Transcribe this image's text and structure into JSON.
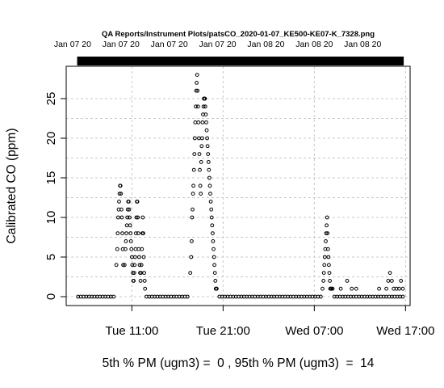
{
  "chart_data": {
    "type": "scatter",
    "title": "QA Reports/Instrument Plots/patsCO_2020-01-07_KE500-KE07-K_7328.png",
    "ylabel": "Calibrated CO (ppm)",
    "xlabel": "",
    "footer": "5th % PM (ugm3) =  0 , 95th % PM (ugm3)  =  14",
    "x_unit": "hours since Tue 00:00 (Jan 07 20)",
    "xlim": [
      3.8,
      41.5
    ],
    "ylim": [
      0,
      28
    ],
    "grid": true,
    "bottom_ticks": [
      {
        "x": 11,
        "label": "Tue 11:00"
      },
      {
        "x": 21,
        "label": "Tue 21:00"
      },
      {
        "x": 31,
        "label": "Wed 07:00"
      },
      {
        "x": 41,
        "label": "Wed 17:00"
      }
    ],
    "top_ticks": [
      {
        "x": 4.5,
        "label": "Jan 07 20"
      },
      {
        "x": 9.8,
        "label": "Jan 07 20"
      },
      {
        "x": 15.1,
        "label": "Jan 07 20"
      },
      {
        "x": 20.4,
        "label": "Jan 07 20"
      },
      {
        "x": 25.7,
        "label": "Jan 08 20"
      },
      {
        "x": 31.0,
        "label": "Jan 08 20"
      },
      {
        "x": 36.3,
        "label": "Jan 08 20"
      }
    ],
    "y_ticks": [
      0,
      5,
      10,
      15,
      20,
      25
    ],
    "top_bar": {
      "start": 5.0,
      "end": 40.8
    },
    "series": [
      {
        "name": "",
        "marker": "open-circle",
        "points": [
          [
            5.1,
            0
          ],
          [
            5.4,
            0
          ],
          [
            5.7,
            0
          ],
          [
            6.0,
            0
          ],
          [
            6.3,
            0
          ],
          [
            6.6,
            0
          ],
          [
            6.9,
            0
          ],
          [
            7.2,
            0
          ],
          [
            7.5,
            0
          ],
          [
            7.8,
            0
          ],
          [
            8.1,
            0
          ],
          [
            8.4,
            0
          ],
          [
            8.7,
            0
          ],
          [
            9.0,
            0
          ],
          [
            9.3,
            4
          ],
          [
            9.4,
            6
          ],
          [
            9.45,
            8
          ],
          [
            9.5,
            10
          ],
          [
            9.55,
            11
          ],
          [
            9.6,
            12
          ],
          [
            9.65,
            13
          ],
          [
            9.7,
            14
          ],
          [
            9.75,
            14
          ],
          [
            9.8,
            13
          ],
          [
            9.85,
            11
          ],
          [
            9.9,
            10
          ],
          [
            9.95,
            8
          ],
          [
            10.0,
            6
          ],
          [
            10.05,
            4
          ],
          [
            10.2,
            4
          ],
          [
            10.3,
            6
          ],
          [
            10.35,
            7
          ],
          [
            10.4,
            8
          ],
          [
            10.45,
            9
          ],
          [
            10.5,
            10
          ],
          [
            10.55,
            11
          ],
          [
            10.6,
            12
          ],
          [
            10.65,
            12
          ],
          [
            10.7,
            11
          ],
          [
            10.75,
            10
          ],
          [
            10.8,
            9
          ],
          [
            10.85,
            8
          ],
          [
            10.9,
            7
          ],
          [
            10.95,
            6
          ],
          [
            11.0,
            5
          ],
          [
            11.05,
            4
          ],
          [
            11.1,
            3
          ],
          [
            11.15,
            2
          ],
          [
            11.2,
            2
          ],
          [
            11.25,
            3
          ],
          [
            11.3,
            4
          ],
          [
            11.35,
            5
          ],
          [
            11.4,
            6
          ],
          [
            11.45,
            8
          ],
          [
            11.5,
            10
          ],
          [
            11.55,
            12
          ],
          [
            11.6,
            12
          ],
          [
            11.65,
            10
          ],
          [
            11.7,
            8
          ],
          [
            11.75,
            6
          ],
          [
            11.8,
            5
          ],
          [
            11.85,
            4
          ],
          [
            11.9,
            3
          ],
          [
            11.95,
            2
          ],
          [
            12.0,
            3
          ],
          [
            12.05,
            4
          ],
          [
            12.1,
            6
          ],
          [
            12.15,
            8
          ],
          [
            12.2,
            10
          ],
          [
            12.25,
            8
          ],
          [
            12.3,
            5
          ],
          [
            12.35,
            3
          ],
          [
            12.4,
            2
          ],
          [
            12.45,
            1
          ],
          [
            12.6,
            0
          ],
          [
            12.9,
            0
          ],
          [
            13.2,
            0
          ],
          [
            13.5,
            0
          ],
          [
            13.8,
            0
          ],
          [
            14.1,
            0
          ],
          [
            14.4,
            0
          ],
          [
            14.7,
            0
          ],
          [
            15.0,
            0
          ],
          [
            15.3,
            0
          ],
          [
            15.6,
            0
          ],
          [
            15.9,
            0
          ],
          [
            16.2,
            0
          ],
          [
            16.5,
            0
          ],
          [
            16.8,
            0
          ],
          [
            17.1,
            0
          ],
          [
            17.4,
            3
          ],
          [
            17.5,
            5
          ],
          [
            17.55,
            7
          ],
          [
            17.6,
            10
          ],
          [
            17.65,
            11
          ],
          [
            17.7,
            13
          ],
          [
            17.75,
            14
          ],
          [
            17.8,
            16
          ],
          [
            17.85,
            18
          ],
          [
            17.9,
            20
          ],
          [
            17.95,
            22
          ],
          [
            18.0,
            24
          ],
          [
            18.05,
            26
          ],
          [
            18.1,
            27
          ],
          [
            18.15,
            28
          ],
          [
            18.2,
            26
          ],
          [
            18.25,
            24
          ],
          [
            18.3,
            22
          ],
          [
            18.35,
            20
          ],
          [
            18.4,
            18
          ],
          [
            18.45,
            16
          ],
          [
            18.5,
            14
          ],
          [
            18.55,
            13
          ],
          [
            18.6,
            17
          ],
          [
            18.65,
            19
          ],
          [
            18.7,
            20
          ],
          [
            18.75,
            22
          ],
          [
            18.8,
            23
          ],
          [
            18.85,
            24
          ],
          [
            18.9,
            25
          ],
          [
            18.95,
            25
          ],
          [
            19.0,
            25
          ],
          [
            19.05,
            24
          ],
          [
            19.1,
            23
          ],
          [
            19.15,
            22
          ],
          [
            19.2,
            21
          ],
          [
            19.25,
            20
          ],
          [
            19.3,
            19
          ],
          [
            19.35,
            18
          ],
          [
            19.4,
            17
          ],
          [
            19.45,
            16
          ],
          [
            19.5,
            15
          ],
          [
            19.55,
            14
          ],
          [
            19.6,
            13
          ],
          [
            19.65,
            12
          ],
          [
            19.7,
            11
          ],
          [
            19.75,
            10
          ],
          [
            19.8,
            9
          ],
          [
            19.85,
            8
          ],
          [
            19.9,
            7
          ],
          [
            19.95,
            6
          ],
          [
            20.0,
            5
          ],
          [
            20.05,
            4
          ],
          [
            20.1,
            3
          ],
          [
            20.15,
            2
          ],
          [
            20.2,
            1
          ],
          [
            20.25,
            1
          ],
          [
            20.3,
            1
          ],
          [
            20.6,
            0
          ],
          [
            20.9,
            0
          ],
          [
            21.2,
            0
          ],
          [
            21.5,
            0
          ],
          [
            21.8,
            0
          ],
          [
            22.1,
            0
          ],
          [
            22.4,
            0
          ],
          [
            22.7,
            0
          ],
          [
            23.0,
            0
          ],
          [
            23.3,
            0
          ],
          [
            23.6,
            0
          ],
          [
            23.9,
            0
          ],
          [
            24.2,
            0
          ],
          [
            24.5,
            0
          ],
          [
            24.8,
            0
          ],
          [
            25.1,
            0
          ],
          [
            25.4,
            0
          ],
          [
            25.7,
            0
          ],
          [
            26.0,
            0
          ],
          [
            26.3,
            0
          ],
          [
            26.6,
            0
          ],
          [
            26.9,
            0
          ],
          [
            27.2,
            0
          ],
          [
            27.5,
            0
          ],
          [
            27.8,
            0
          ],
          [
            28.1,
            0
          ],
          [
            28.4,
            0
          ],
          [
            28.7,
            0
          ],
          [
            29.0,
            0
          ],
          [
            29.3,
            0
          ],
          [
            29.6,
            0
          ],
          [
            29.9,
            0
          ],
          [
            30.2,
            0
          ],
          [
            30.5,
            0
          ],
          [
            30.8,
            0
          ],
          [
            31.1,
            0
          ],
          [
            31.4,
            0
          ],
          [
            31.7,
            0
          ],
          [
            31.9,
            1
          ],
          [
            32.0,
            2
          ],
          [
            32.05,
            3
          ],
          [
            32.1,
            4
          ],
          [
            32.15,
            5
          ],
          [
            32.2,
            6
          ],
          [
            32.25,
            7
          ],
          [
            32.3,
            8
          ],
          [
            32.35,
            9
          ],
          [
            32.4,
            10
          ],
          [
            32.45,
            8
          ],
          [
            32.5,
            6
          ],
          [
            32.55,
            5
          ],
          [
            32.6,
            4
          ],
          [
            32.65,
            3
          ],
          [
            32.7,
            2
          ],
          [
            32.75,
            1
          ],
          [
            32.8,
            1
          ],
          [
            32.9,
            1
          ],
          [
            33.0,
            1
          ],
          [
            33.2,
            0
          ],
          [
            33.5,
            0
          ],
          [
            33.8,
            0
          ],
          [
            34.1,
            0
          ],
          [
            34.4,
            0
          ],
          [
            34.7,
            0
          ],
          [
            35.0,
            0
          ],
          [
            35.3,
            0
          ],
          [
            35.6,
            0
          ],
          [
            35.9,
            0
          ],
          [
            36.2,
            0
          ],
          [
            36.5,
            0
          ],
          [
            36.8,
            0
          ],
          [
            37.1,
            0
          ],
          [
            37.4,
            0
          ],
          [
            37.7,
            0
          ],
          [
            38.0,
            0
          ],
          [
            38.3,
            0
          ],
          [
            38.6,
            0
          ],
          [
            38.9,
            0
          ],
          [
            39.2,
            0
          ],
          [
            39.5,
            0
          ],
          [
            39.8,
            0
          ],
          [
            40.1,
            0
          ],
          [
            40.4,
            0
          ],
          [
            40.7,
            0
          ],
          [
            33.9,
            1
          ],
          [
            34.6,
            2
          ],
          [
            35.1,
            1
          ],
          [
            35.6,
            1
          ],
          [
            38.1,
            1
          ],
          [
            38.9,
            1
          ],
          [
            39.1,
            2
          ],
          [
            39.3,
            3
          ],
          [
            39.5,
            2
          ],
          [
            39.7,
            1
          ],
          [
            40.0,
            1
          ],
          [
            40.3,
            1
          ],
          [
            40.5,
            2
          ],
          [
            40.7,
            1
          ]
        ]
      }
    ]
  }
}
